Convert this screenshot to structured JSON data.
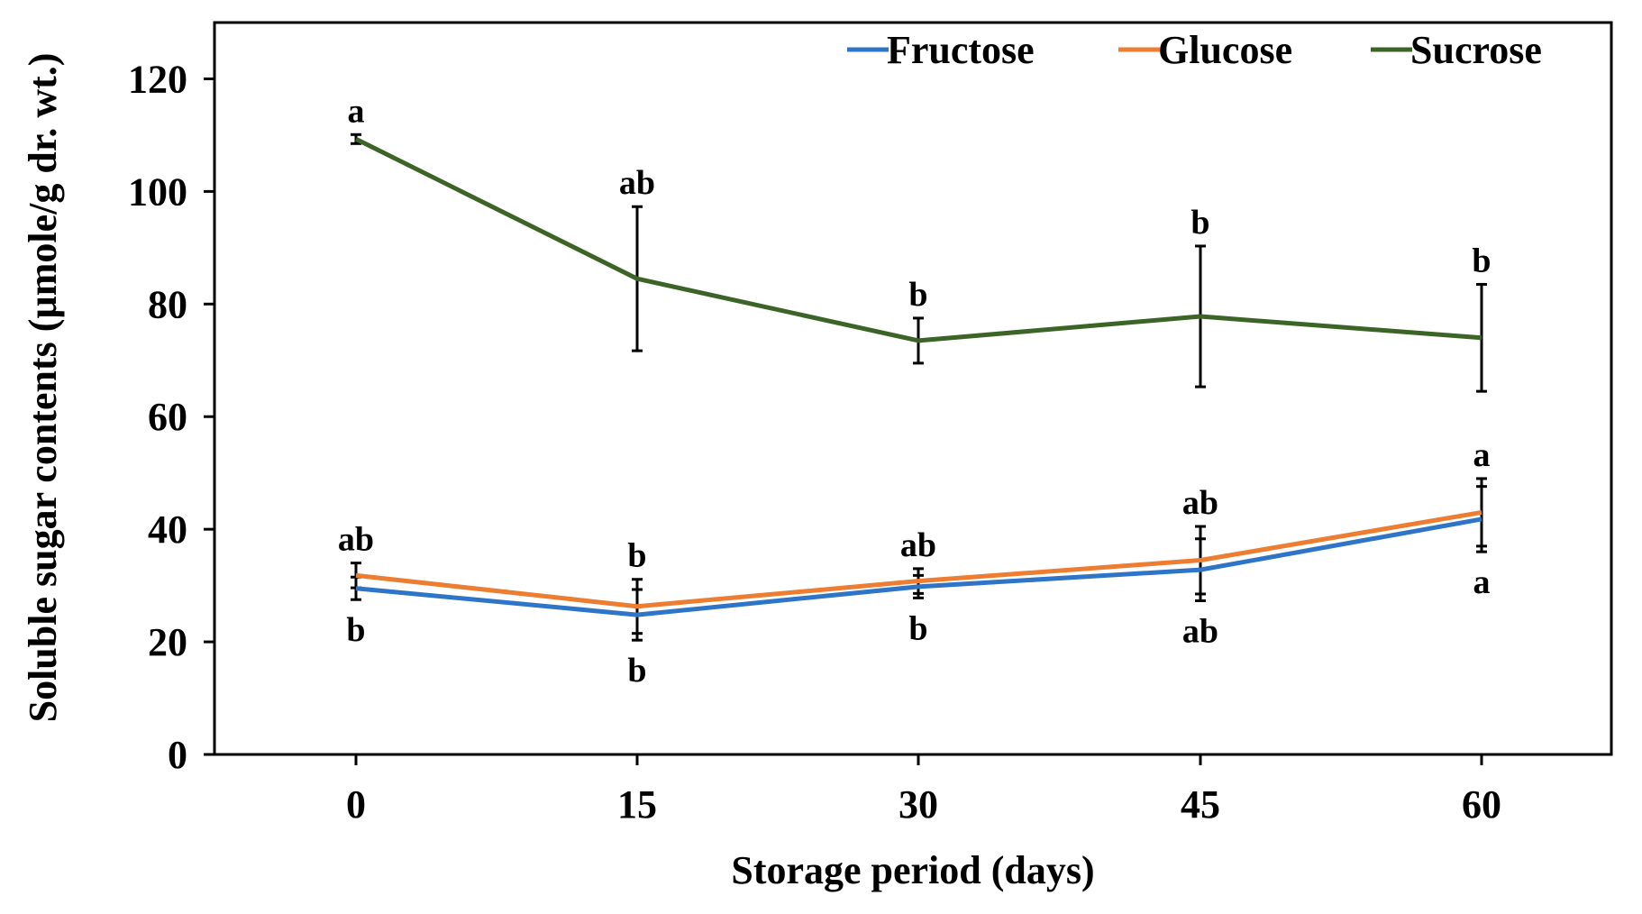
{
  "chart_data": {
    "type": "line",
    "title": "",
    "xlabel": "Storage period (days)",
    "ylabel": "Soluble sugar contents (µmole/g dr. wt.)",
    "categories": [
      "0",
      "15",
      "30",
      "45",
      "60"
    ],
    "ylim": [
      0,
      130
    ],
    "yticks": [
      "0",
      "20",
      "40",
      "60",
      "80",
      "100",
      "120"
    ],
    "legend_position": "top-right",
    "grid": false,
    "series": [
      {
        "name": "Fructose",
        "color": "#2E75C8",
        "values": [
          29.5,
          24.8,
          29.8,
          32.8,
          41.8
        ],
        "errors": [
          2.0,
          4.5,
          2.0,
          5.5,
          5.8
        ],
        "sig": [
          "b",
          "b",
          "b",
          "ab",
          "a"
        ]
      },
      {
        "name": "Glucose",
        "color": "#ED7D31",
        "values": [
          31.8,
          26.3,
          30.8,
          34.5,
          43.0
        ],
        "errors": [
          2.2,
          4.8,
          2.2,
          6.0,
          6.0
        ],
        "sig": [
          "ab",
          "b",
          "ab",
          "ab",
          "a"
        ]
      },
      {
        "name": "Sucrose",
        "color": "#3B6426",
        "values": [
          109.3,
          84.5,
          73.5,
          77.8,
          74.0
        ],
        "errors": [
          0.8,
          12.8,
          4.0,
          12.5,
          9.5
        ],
        "sig": [
          "a",
          "ab",
          "b",
          "b",
          "b"
        ]
      }
    ]
  }
}
